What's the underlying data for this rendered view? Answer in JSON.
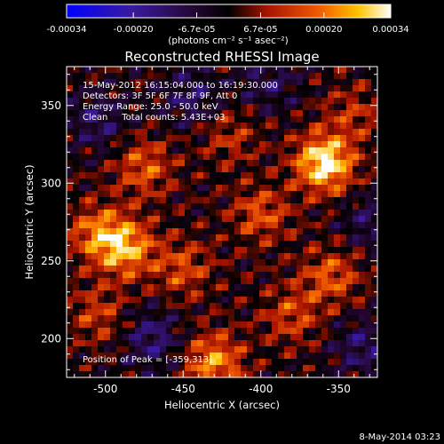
{
  "chart_data": {
    "type": "heatmap",
    "title": "Reconstructed RHESSI Image",
    "colorbar": {
      "ticks": [
        "-0.00034",
        "-0.00020",
        "-6.7e-05",
        "6.7e-05",
        "0.00020",
        "0.00034"
      ],
      "tick_values": [
        -0.00034,
        -0.0002,
        -6.7e-05,
        6.7e-05,
        0.0002,
        0.00034
      ],
      "range": [
        -0.00034,
        0.00034
      ],
      "unit_label": "(photons cm⁻² s⁻¹ asec⁻²)",
      "colormap": "blue-purple-black-red-orange-yellow-white"
    },
    "xlabel": "Heliocentric X (arcsec)",
    "ylabel": "Heliocentric Y (arcsec)",
    "xlim": [
      -525,
      -325
    ],
    "ylim": [
      175,
      375
    ],
    "xticks": [
      "-500",
      "-450",
      "-400",
      "-350"
    ],
    "xtick_values": [
      -500,
      -450,
      -400,
      -350
    ],
    "yticks": [
      "200",
      "250",
      "300",
      "350"
    ],
    "ytick_values": [
      200,
      250,
      300,
      350
    ],
    "annotations": [
      "15-May-2012 16:15:04.000 to 16:19:30.000",
      "Detectors: 3F 5F 6F 7F 8F 9F, Att 0",
      "Energy Range: 25.0 - 50.0 keV",
      "Clean     Total counts: 5.43E+03"
    ],
    "peak_label": "Position of Peak = [-359,313]",
    "peak": {
      "x": -359,
      "y": 313
    },
    "sources": [
      {
        "x": -359,
        "y": 313,
        "value": 0.00034
      },
      {
        "x": -487,
        "y": 258,
        "value": 0.00024
      },
      {
        "x": -505,
        "y": 268,
        "value": 0.00018
      },
      {
        "x": -430,
        "y": 185,
        "value": 0.00022
      },
      {
        "x": -475,
        "y": 310,
        "value": 0.00016
      },
      {
        "x": -400,
        "y": 280,
        "value": 0.00015
      },
      {
        "x": -355,
        "y": 240,
        "value": 0.00016
      },
      {
        "x": -380,
        "y": 215,
        "value": 0.00013
      },
      {
        "x": -450,
        "y": 245,
        "value": 0.00014
      },
      {
        "x": -505,
        "y": 215,
        "value": 0.00012
      },
      {
        "x": -420,
        "y": 330,
        "value": 0.0001
      },
      {
        "x": -340,
        "y": 345,
        "value": 0.0001
      },
      {
        "x": -445,
        "y": 355,
        "value": -0.00012
      },
      {
        "x": -505,
        "y": 340,
        "value": -0.00012
      },
      {
        "x": -470,
        "y": 200,
        "value": -0.00014
      },
      {
        "x": -335,
        "y": 195,
        "value": -0.00012
      },
      {
        "x": -395,
        "y": 365,
        "value": -0.0001
      },
      {
        "x": -330,
        "y": 275,
        "value": -0.0001
      }
    ]
  },
  "footer": {
    "date": "8-May-2014 03:23"
  }
}
